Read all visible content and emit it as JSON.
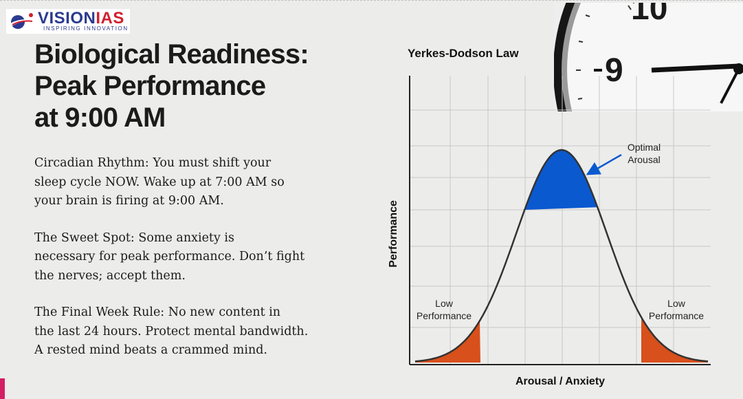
{
  "logo": {
    "brand_main": "VISION",
    "brand_accent": "IAS",
    "tagline": "INSPIRING INNOVATION"
  },
  "title_lines": [
    "Biological Readiness:",
    "Peak Performance",
    "at 9:00 AM"
  ],
  "points": [
    {
      "lead": "Circadian Rhythm:",
      "lines": [
        " You must shift your",
        "sleep cycle NOW. Wake up at 7:00 AM so",
        "your brain is firing at 9:00 AM."
      ]
    },
    {
      "lead": "The Sweet Spot:",
      "lines": [
        " Some anxiety is",
        "necessary for peak performance. Don’t fight",
        "the nerves; accept them."
      ]
    },
    {
      "lead": "The Final Week Rule:",
      "lines": [
        " No new content in",
        "the last 24 hours. Protect mental bandwidth.",
        "A rested mind beats a crammed mind."
      ]
    }
  ],
  "clock": {
    "numerals": [
      "10",
      "9"
    ]
  },
  "diagram": {
    "title": "Yerkes-Dodson Law",
    "xlabel": "Arousal / Anxiety",
    "ylabel": "Performance",
    "optimal_label": [
      "Optimal",
      "Arousal"
    ],
    "low_label": [
      "Low",
      "Performance"
    ],
    "colors": {
      "optimal": "#0a59cf",
      "low": "#d8501b",
      "curve": "#333333",
      "grid": "#c9c9c9"
    }
  }
}
